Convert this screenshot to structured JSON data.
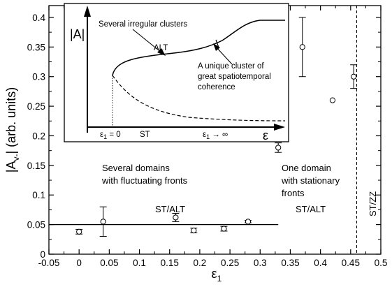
{
  "chart_data": [
    {
      "type": "scatter",
      "xlabel_main": "ε",
      "xlabel_sub": "1",
      "ylabel": "|A_{v-}| (arb. units)",
      "ylabel_main": "|A",
      "ylabel_sub": "v-",
      "ylabel_rest": "| (arb. units)",
      "xlim": [
        -0.05,
        0.5
      ],
      "ylim": [
        0,
        0.42
      ],
      "xticks": [
        "-0.05",
        "0",
        "0.05",
        "0.1",
        "0.15",
        "0.2",
        "0.25",
        "0.3",
        "0.35",
        "0.4",
        "0.45",
        "0.5"
      ],
      "yticks": [
        "0",
        "0.05",
        "0.1",
        "0.15",
        "0.2",
        "0.25",
        "0.3",
        "0.35",
        "0.4"
      ],
      "grid": false,
      "points": [
        {
          "x": 0.0,
          "y": 0.038,
          "err": 0.004
        },
        {
          "x": 0.04,
          "y": 0.055,
          "err": 0.025
        },
        {
          "x": 0.16,
          "y": 0.062,
          "err": 0.007
        },
        {
          "x": 0.19,
          "y": 0.04,
          "err": 0.004
        },
        {
          "x": 0.24,
          "y": 0.043,
          "err": 0.004
        },
        {
          "x": 0.28,
          "y": 0.055,
          "err": 0.002
        },
        {
          "x": 0.33,
          "y": 0.18,
          "err": 0.008
        },
        {
          "x": 0.37,
          "y": 0.35,
          "err": 0.05
        },
        {
          "x": 0.42,
          "y": 0.26,
          "err": 0.0
        },
        {
          "x": 0.455,
          "y": 0.3,
          "err": 0.02
        }
      ],
      "reference_line": {
        "x_start": -0.05,
        "x_end": 0.33,
        "y": 0.05
      },
      "boundary_line": {
        "x": 0.46,
        "style": "dashed"
      },
      "annotations": [
        {
          "id": "left1",
          "text": "Several domains"
        },
        {
          "id": "left2",
          "text": "with fluctuating fronts"
        },
        {
          "id": "st_alt_left",
          "text": "ST/ALT"
        },
        {
          "id": "right1",
          "text": "One domain"
        },
        {
          "id": "right2",
          "text": "with stationary"
        },
        {
          "id": "right3",
          "text": "fronts"
        },
        {
          "id": "st_alt_right",
          "text": "ST/ALT"
        },
        {
          "id": "st_zz",
          "text": "ST/ZZ"
        }
      ]
    },
    {
      "type": "line",
      "role": "inset",
      "ylabel": "|A|",
      "xlabel": "ε",
      "labels": {
        "clusters": "Several irregular clusters",
        "alt": "ALT",
        "unique1": "A unique cluster of",
        "unique2": "great spatiotemporal",
        "unique3": "coherence",
        "st": "ST",
        "eps_zero": "ε",
        "eps_zero_sub": "1",
        "eps_zero_rest": " = 0",
        "eps_inf": "ε",
        "eps_inf_sub": "1",
        "eps_inf_rest": " → ∞"
      },
      "series": [
        {
          "style": "solid"
        },
        {
          "style": "dashed"
        }
      ]
    }
  ]
}
